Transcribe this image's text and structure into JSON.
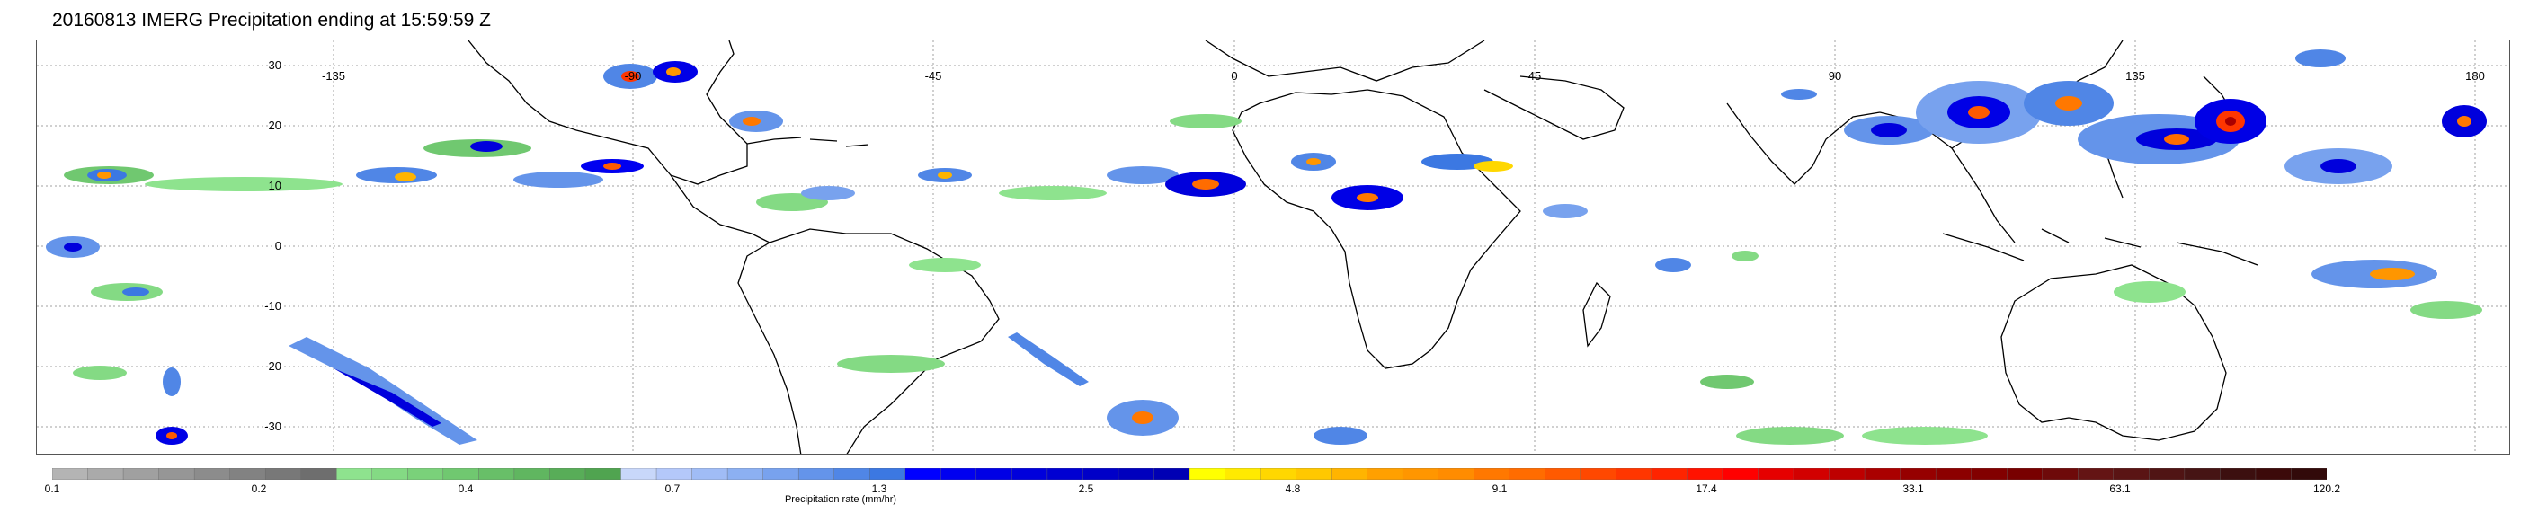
{
  "title": "20160813 IMERG Precipitation ending at 15:59:59 Z",
  "map": {
    "lon_labels": [
      "-135",
      "-90",
      "-45",
      "0",
      "45",
      "90",
      "135",
      "180"
    ],
    "lat_labels": [
      "30",
      "20",
      "10",
      "0",
      "-10",
      "-20",
      "-30"
    ],
    "gridlines": true,
    "land_outline_color": "#000000"
  },
  "colorbar": {
    "label": "Precipitation rate (mm/hr)",
    "ticks": [
      "0.1",
      "0.2",
      "0.4",
      "0.7",
      "1.3",
      "2.5",
      "4.8",
      "9.1",
      "17.4",
      "33.1",
      "63.1",
      "120.2"
    ],
    "colors": [
      "#b4b4b4",
      "#aaaaaa",
      "#a0a0a0",
      "#969696",
      "#8c8c8c",
      "#828282",
      "#787878",
      "#6e6e6e",
      "#8ee38e",
      "#84da84",
      "#7ad17a",
      "#70c870",
      "#68bf68",
      "#60b660",
      "#58ad58",
      "#50a450",
      "#c8d7fa",
      "#b4c8fa",
      "#a0bcf6",
      "#8cb0f2",
      "#78a2ee",
      "#6494ea",
      "#5086e6",
      "#3c78e2",
      "#0000ff",
      "#0000f0",
      "#0000e6",
      "#0000dc",
      "#0000d2",
      "#0000c8",
      "#0000be",
      "#0000b4",
      "#ffff00",
      "#ffea00",
      "#ffd700",
      "#ffc800",
      "#ffb400",
      "#ffa000",
      "#ff9600",
      "#ff8c00",
      "#ff7800",
      "#ff6c00",
      "#ff5a00",
      "#ff4800",
      "#ff3600",
      "#ff2400",
      "#ff1200",
      "#ff0000",
      "#e60000",
      "#d20000",
      "#be0000",
      "#aa0000",
      "#960000",
      "#8c0000",
      "#820000",
      "#780000",
      "#6e0a0a",
      "#641414",
      "#5a1414",
      "#501414",
      "#461414",
      "#3c0f0f",
      "#3c0a0a",
      "#320a0a"
    ]
  }
}
